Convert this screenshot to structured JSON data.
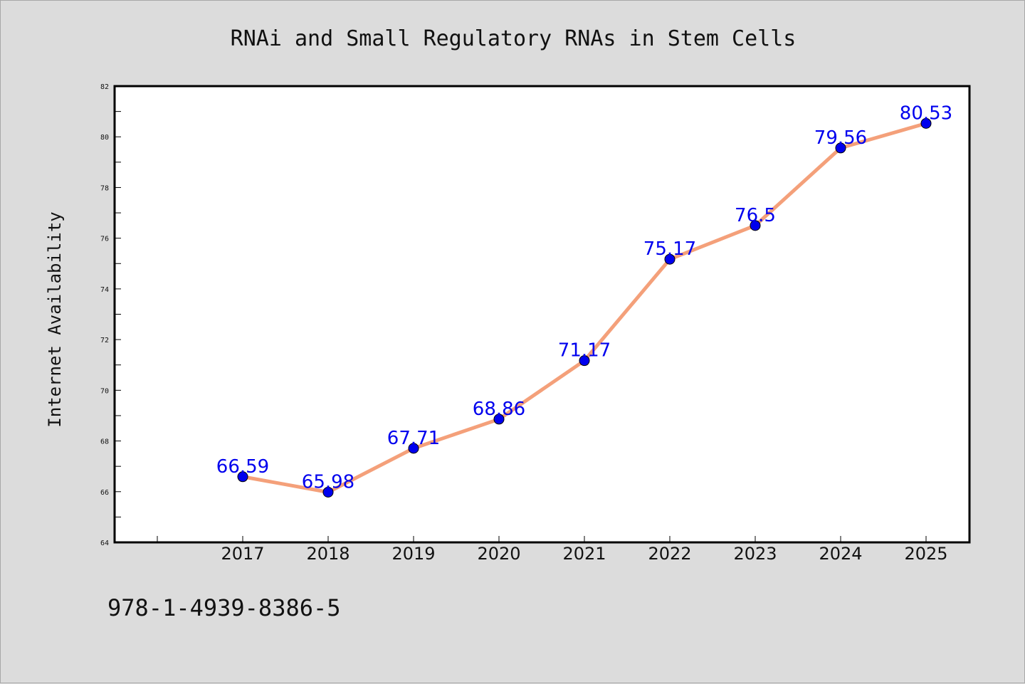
{
  "footer_text": "978-1-4939-8386-5",
  "colors": {
    "background": "#dcdcdc",
    "plot_background": "#ffffff",
    "line": "#f4a07a",
    "marker": "#0000ee",
    "data_label": "#0000ee"
  },
  "chart_data": {
    "type": "line",
    "title": "RNAi and Small Regulatory RNAs in Stem Cells",
    "xlabel": "",
    "ylabel": "Internet Availability",
    "categories": [
      "2017",
      "2018",
      "2019",
      "2020",
      "2021",
      "2022",
      "2023",
      "2024",
      "2025"
    ],
    "values": [
      66.59,
      65.98,
      67.71,
      68.86,
      71.17,
      75.17,
      76.5,
      79.56,
      80.53
    ],
    "data_labels": [
      "66.59",
      "65.98",
      "67.71",
      "68.86",
      "71.17",
      "75.17",
      "76.5",
      "79.56",
      "80.53"
    ],
    "ylim": [
      64,
      82
    ],
    "yticks": [
      "64",
      "66",
      "68",
      "70",
      "72",
      "74",
      "76",
      "78",
      "80",
      "82"
    ],
    "grid": false,
    "legend": "none"
  }
}
